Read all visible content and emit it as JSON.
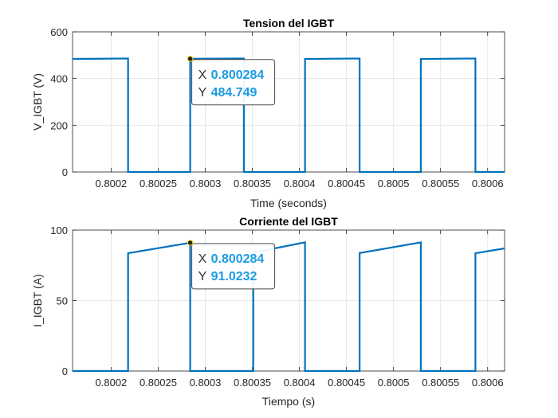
{
  "colors": {
    "line": "#0072BD",
    "grid": "#e6e6e6",
    "axis": "#262626",
    "tip_value": "#1c9be3",
    "tip_label": "#333333"
  },
  "chart_data": [
    {
      "type": "line",
      "title": "Tension del IGBT",
      "xlabel": "Time (seconds)",
      "ylabel": "V_IGBT (V)",
      "xlim": [
        0.800159,
        0.800618
      ],
      "ylim": [
        0,
        600
      ],
      "xticks": [
        0.8002,
        0.80025,
        0.8003,
        0.80035,
        0.8004,
        0.80045,
        0.8005,
        0.80055,
        0.8006
      ],
      "xtick_labels": [
        "0.8002",
        "0.80025",
        "0.8003",
        "0.80035",
        "0.8004",
        "0.80045",
        "0.8005",
        "0.80055",
        "0.8006"
      ],
      "yticks": [
        0,
        200,
        400,
        600
      ],
      "ytick_labels": [
        "0",
        "200",
        "400",
        "600"
      ],
      "grid": true,
      "series": [
        {
          "x": [
            0.800159,
            0.800218,
            0.800218,
            0.800284,
            0.800284,
            0.800341,
            0.800341,
            0.800406,
            0.800406,
            0.800464,
            0.800464,
            0.800529,
            0.800529,
            0.800587,
            0.800587,
            0.800618
          ],
          "y": [
            484,
            486,
            0,
            0,
            484.749,
            486,
            0,
            0,
            484,
            486,
            0,
            0,
            484,
            486,
            0,
            0
          ]
        }
      ],
      "datatip": {
        "x_label": "X",
        "x_value": "0.800284",
        "y_label": "Y",
        "y_value": "484.749",
        "x": 0.800284,
        "y": 484.749
      }
    },
    {
      "type": "line",
      "title": "Corriente del IGBT",
      "xlabel": "Tiempo (s)",
      "ylabel": "I_IGBT (A)",
      "xlim": [
        0.800159,
        0.800618
      ],
      "ylim": [
        0,
        100
      ],
      "xticks": [
        0.8002,
        0.80025,
        0.8003,
        0.80035,
        0.8004,
        0.80045,
        0.8005,
        0.80055,
        0.8006
      ],
      "xtick_labels": [
        "0.8002",
        "0.80025",
        "0.8003",
        "0.80035",
        "0.8004",
        "0.80045",
        "0.8005",
        "0.80055",
        "0.8006"
      ],
      "yticks": [
        0,
        50,
        100
      ],
      "ytick_labels": [
        "0",
        "50",
        "100"
      ],
      "grid": true,
      "series": [
        {
          "x": [
            0.800159,
            0.800218,
            0.800218,
            0.800284,
            0.800284,
            0.800341,
            0.800341,
            0.800351,
            0.800351,
            0.800406,
            0.800406,
            0.800464,
            0.800464,
            0.800529,
            0.800529,
            0.800587,
            0.800587,
            0.800618
          ],
          "y": [
            0,
            0,
            83.6,
            91.0232,
            0,
            0,
            0,
            0,
            84.0,
            91.3,
            0,
            0,
            83.7,
            91.3,
            0,
            0,
            83.6,
            87.0
          ]
        }
      ],
      "datatip": {
        "x_label": "X",
        "x_value": "0.800284",
        "y_label": "Y",
        "y_value": "91.0232",
        "x": 0.800284,
        "y": 91.0232
      }
    }
  ]
}
